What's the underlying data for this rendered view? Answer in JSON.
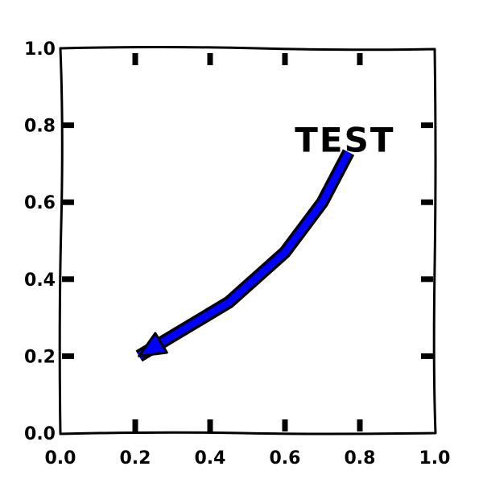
{
  "chart_data": {
    "type": "annotation",
    "title": "",
    "xlabel": "",
    "ylabel": "",
    "xlim": [
      0.0,
      1.0
    ],
    "ylim": [
      0.0,
      1.0
    ],
    "grid": false,
    "x_ticks": [
      "0.0",
      "0.2",
      "0.4",
      "0.6",
      "0.8",
      "1.0"
    ],
    "y_ticks": [
      "0.0",
      "0.2",
      "0.4",
      "0.6",
      "0.8",
      "1.0"
    ],
    "annotations": [
      {
        "text": "TEST",
        "text_x": 0.76,
        "text_y": 0.76,
        "arrow_points": [
          [
            0.77,
            0.73
          ],
          [
            0.7,
            0.6
          ],
          [
            0.6,
            0.47
          ],
          [
            0.45,
            0.34
          ],
          [
            0.33,
            0.27
          ],
          [
            0.21,
            0.2
          ]
        ],
        "arrow_color": "#0000ff"
      }
    ]
  }
}
